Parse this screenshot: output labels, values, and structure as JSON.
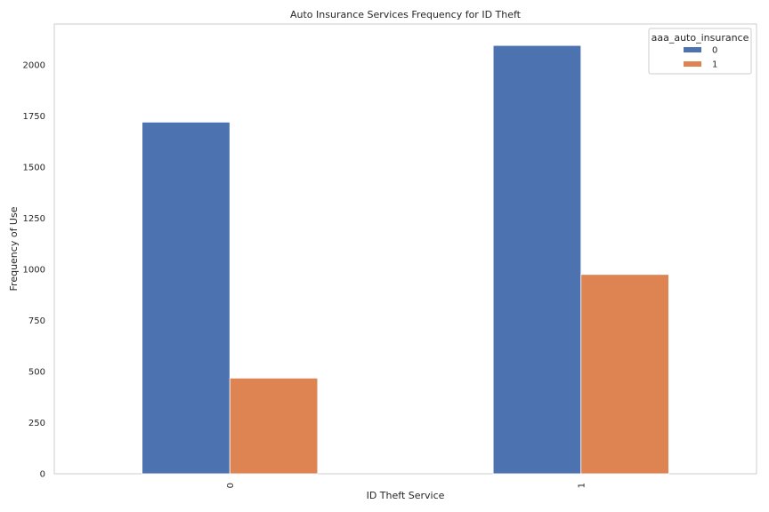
{
  "chart_data": {
    "type": "bar",
    "title": "Auto Insurance Services Frequency for ID Theft",
    "xlabel": "ID Theft Service",
    "ylabel": "Frequency of Use",
    "categories": [
      "0",
      "1"
    ],
    "series": [
      {
        "name": "0",
        "values": [
          1720,
          2095
        ],
        "color": "#4c72b0"
      },
      {
        "name": "1",
        "values": [
          468,
          975
        ],
        "color": "#dd8452"
      }
    ],
    "yticks": [
      0,
      250,
      500,
      750,
      1000,
      1250,
      1500,
      1750,
      2000
    ],
    "ylim": [
      0,
      2200
    ],
    "grid": false,
    "legend": {
      "title": "aaa_auto_insurance",
      "placement": "top-right"
    }
  }
}
